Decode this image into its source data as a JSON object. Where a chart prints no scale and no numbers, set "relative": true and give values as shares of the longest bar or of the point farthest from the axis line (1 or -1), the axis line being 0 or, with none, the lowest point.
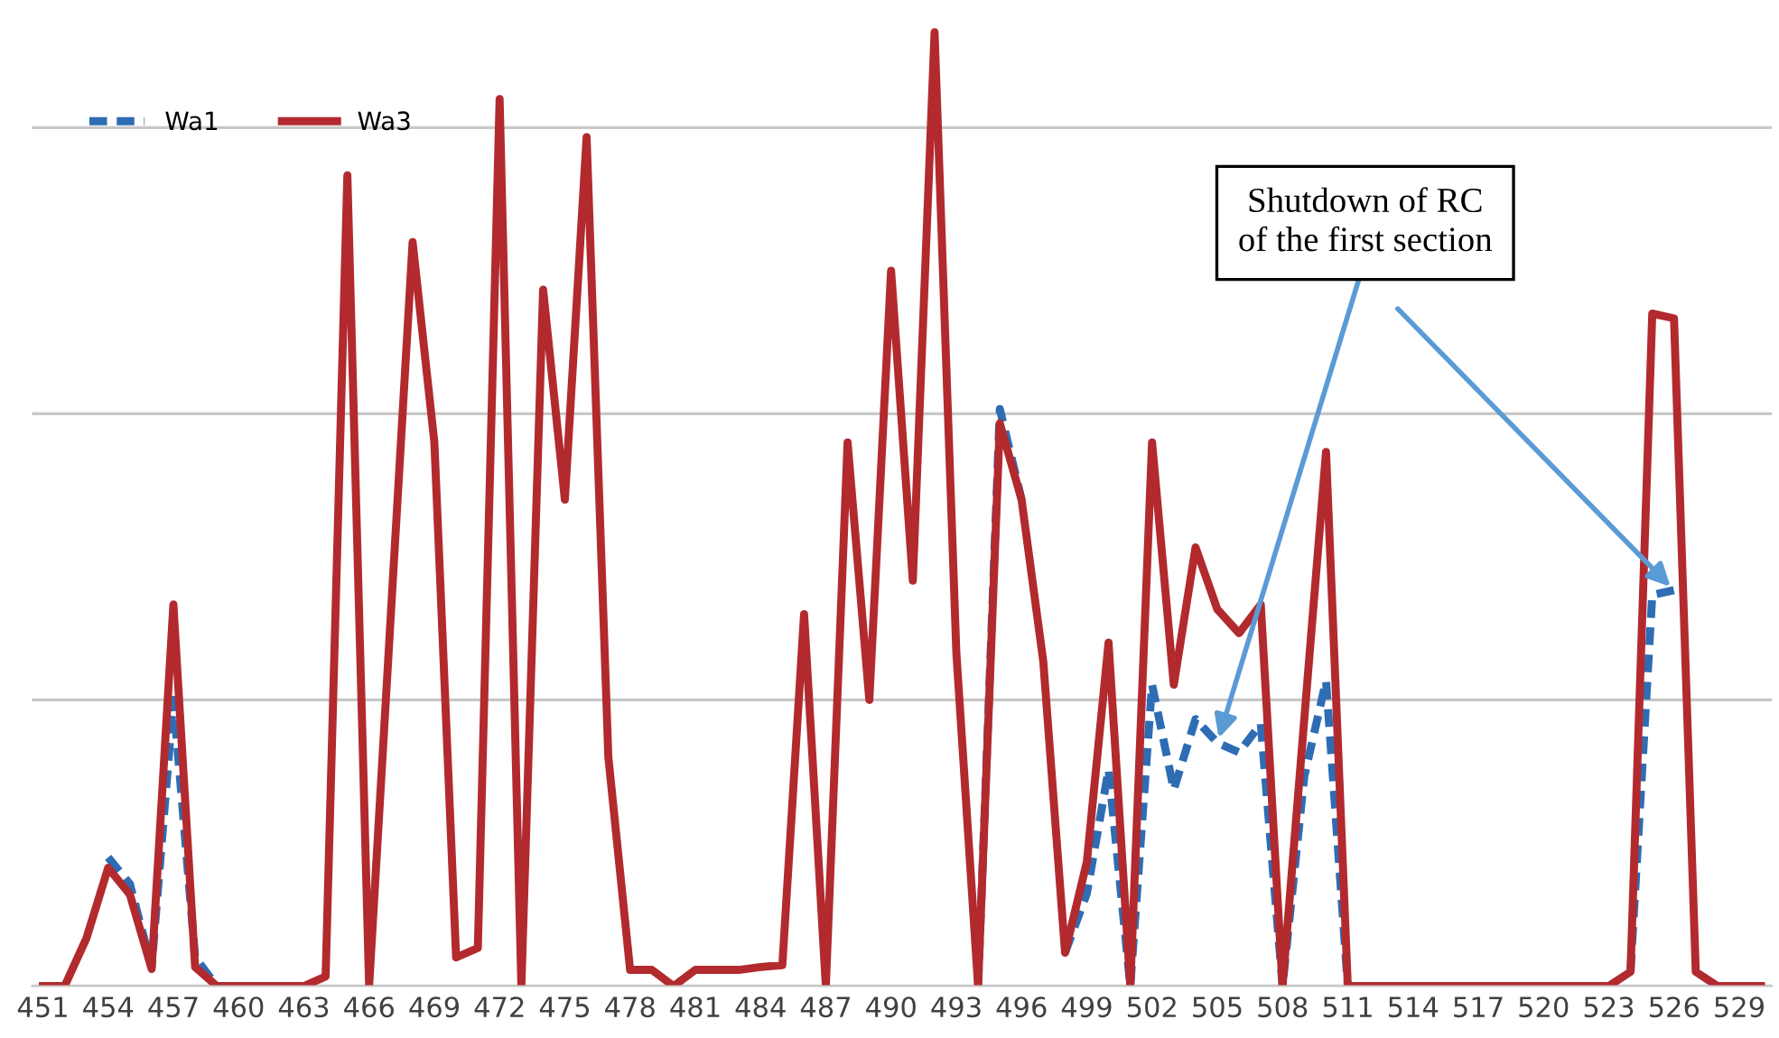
{
  "chart_data": {
    "type": "line",
    "relative": true,
    "categories": [
      "451",
      null,
      null,
      "454",
      null,
      null,
      "457",
      null,
      null,
      "460",
      null,
      null,
      "463",
      null,
      null,
      "466",
      null,
      null,
      "469",
      null,
      null,
      "472",
      null,
      null,
      "475",
      null,
      null,
      "478",
      null,
      null,
      "481",
      null,
      null,
      "484",
      null,
      null,
      "487",
      null,
      null,
      "490",
      null,
      null,
      "493",
      null,
      null,
      "496",
      null,
      null,
      "499",
      null,
      null,
      "502",
      null,
      null,
      "505",
      null,
      null,
      "508",
      null,
      null,
      "511",
      null,
      null,
      "514",
      null,
      null,
      "517",
      null,
      null,
      "520",
      null,
      null,
      "523",
      null,
      null,
      "526",
      null,
      null,
      "529",
      null
    ],
    "series": [
      {
        "name": "Wa1",
        "color": "#2e6db4",
        "line_style": "dashed",
        "values": [
          null,
          null,
          null,
          0.135,
          0.107,
          0.02,
          0.3,
          0.03,
          0,
          null,
          null,
          null,
          null,
          null,
          null,
          null,
          null,
          null,
          null,
          null,
          null,
          null,
          null,
          null,
          null,
          null,
          null,
          null,
          null,
          null,
          null,
          null,
          null,
          null,
          null,
          null,
          null,
          null,
          null,
          null,
          null,
          null,
          null,
          0,
          0.605,
          0.51,
          null,
          0.035,
          0.097,
          0.227,
          0,
          0.316,
          0.206,
          0.28,
          0.255,
          0.245,
          0.275,
          0,
          0.22,
          0.32,
          0,
          null,
          null,
          null,
          null,
          null,
          null,
          null,
          null,
          null,
          null,
          null,
          null,
          0.015,
          0.41,
          0.415,
          null,
          null,
          null,
          null
        ]
      },
      {
        "name": "Wa3",
        "color": "#b22a2e",
        "line_style": "solid",
        "values": [
          0,
          0,
          0.05,
          0.124,
          0.096,
          0.018,
          0.4,
          0.02,
          0,
          0,
          0,
          0,
          0,
          0.01,
          0.85,
          0,
          0.39,
          0.78,
          0.57,
          0.03,
          0.04,
          0.93,
          0,
          0.73,
          0.51,
          0.89,
          0.24,
          0.017,
          0.017,
          0,
          0.017,
          0.017,
          0.017,
          0.02,
          0.022,
          0.39,
          0,
          0.57,
          0.3,
          0.75,
          0.425,
          1,
          0.35,
          0,
          0.59,
          0.51,
          0.34,
          0.035,
          0.13,
          0.36,
          0,
          0.57,
          0.316,
          0.46,
          0.395,
          0.37,
          0.4,
          0,
          0.28,
          0.56,
          0,
          0,
          0,
          0,
          0,
          0,
          0,
          0,
          0,
          0,
          0,
          0,
          0,
          0.015,
          0.705,
          0.7,
          0.015,
          0,
          0,
          0
        ]
      }
    ],
    "annotations": [
      {
        "text": "Shutdown of RC\nof the first section",
        "x": "505",
        "y": 0.255
      }
    ],
    "grid": "y",
    "legend": "top left",
    "marker": "none",
    "tick_labels": "x"
  }
}
